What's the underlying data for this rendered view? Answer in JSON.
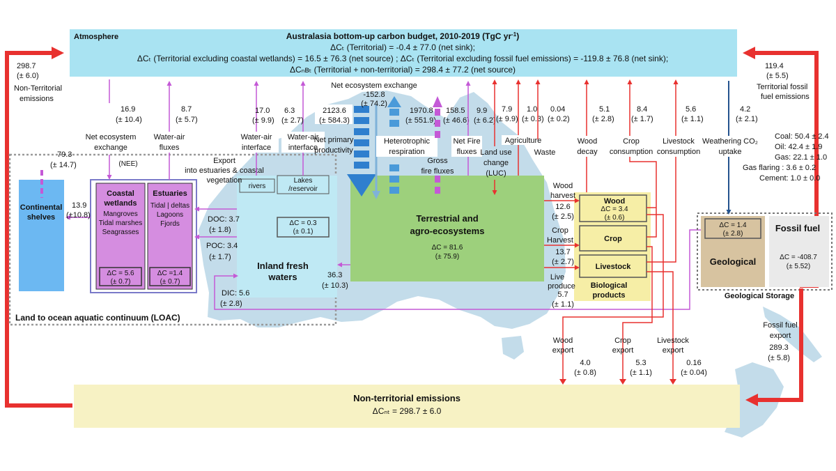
{
  "atmosphere": {
    "label": "Atmosphere",
    "title": "Australasia bottom-up carbon budget, 2010-2019  (TgC yr",
    "title_sup": "-1",
    "title_end": ")",
    "line1": "ΔCₜ (Territorial) = -0.4 ± 77.0 (net sink);",
    "line2": "ΔCₜ (Territorial excluding coastal wetlands) = 16.5 ± 76.3 (net source) ; ΔCₜ (Territorial excluding fossil fuel emissions) = -119.8 ± 76.8 (net sink);",
    "line3": "ΔCₙʙₜ (Territorial + non-territorial) = 298.4 ± 77.2 (net source)"
  },
  "non_territorial": {
    "left_value": "298.7",
    "left_unc": "(± 6.0)",
    "left_label1": "Non-Territorial",
    "left_label2": "emissions",
    "box_title": "Non-territorial emissions",
    "box_value": "ΔCₙₜ = 298.7 ± 6.0"
  },
  "fossil_right": {
    "value": "119.4",
    "unc": "(± 5.5)",
    "label1": "Territorial fossil",
    "label2": "fuel emissions",
    "coal": "Coal: 50.4 ± 2.4",
    "oil": "Oil:    42.4 ± 1.9",
    "gas": "Gas:   22.1 ± 1.0",
    "flaring": "Gas flaring : 3.6 ± 0.2",
    "cement": "Cement: 1.0 ± 0.0"
  },
  "fluxes": {
    "nee_val": "16.9",
    "nee_unc": "(± 10.4)",
    "nee_l1": "Net ecosystem",
    "nee_l2": "exchange",
    "nee_tag": "(NEE)",
    "wa_val": "8.7",
    "wa_unc": "(± 5.7)",
    "wa_l1": "Water-air",
    "wa_l2": "fluxes",
    "cont_val": "79.3",
    "cont_unc": "(± 14.7)",
    "rv_val": "17.0",
    "rv_unc": "(± 9.9)",
    "rv_l1": "Water-air",
    "rv_l2": "interface",
    "lk_val": "6.3",
    "lk_unc": "(± 2.7)",
    "lk_l1": "Water-air",
    "lk_l2": "interface",
    "npp_val": "2123.6",
    "npp_unc": "(± 584.3)",
    "npp_l1": "Net primary",
    "npp_l2": "productivity",
    "nete_label": "Net ecosystem exchange",
    "nete_val": "-152.8",
    "nete_unc": "(± 74.2)",
    "het_val": "1970.8",
    "het_unc": "(± 551.9)",
    "het_l1": "Heterotrophic",
    "het_l2": "respiration",
    "gf_val": "158.5",
    "gf_unc": "(± 46.6)",
    "gf_l1": "Gross",
    "gf_l2": "fire fluxes",
    "nf_val": "9.9",
    "nf_unc": "(± 6.2)",
    "nf_l1": "Net Fire",
    "nf_l2": "fluxes",
    "luc_val": "7.9",
    "luc_unc": "(± 9.9)",
    "luc_l1": "Land use",
    "luc_l2": "change",
    "luc_l3": "(LUC)",
    "ag_val": "1.0",
    "ag_unc": "(± 0.3)",
    "ag_l1": "Agriculture",
    "ws_val": "0.04",
    "ws_unc": "(± 0.2)",
    "ws_l1": "Waste",
    "wd_val": "5.1",
    "wd_unc": "(± 2.8)",
    "wd_l1": "Wood",
    "wd_l2": "decay",
    "cc_val": "8.4",
    "cc_unc": "(± 1.7)",
    "cc_l1": "Crop",
    "cc_l2": "consumption",
    "lc_val": "5.6",
    "lc_unc": "(± 1.1)",
    "lc_l1": "Livestock",
    "lc_l2": "consumption",
    "we_val": "4.2",
    "we_unc": "(± 2.1)",
    "we_l1": "Weathering CO₂",
    "we_l2": "uptake"
  },
  "loac": {
    "label": "Land to ocean aquatic continuum (LOAC)",
    "shelves_l1": "Continental",
    "shelves_l2": "shelves",
    "sh_flux_val": "13.9",
    "sh_flux_unc": "(±10.8)",
    "cw_title1": "Coastal",
    "cw_title2": "wetlands",
    "cw_i1": "Mangroves",
    "cw_i2": "Tidal marshes",
    "cw_i3": "Seagrasses",
    "cw_dc1": "ΔC = 5.6",
    "cw_dc2": "(± 0.7)",
    "es_title": "Estuaries",
    "es_i1": "Tidal | deltas",
    "es_i2": "Lagoons",
    "es_i3": "Fjords",
    "es_dc1": "ΔC =1.4",
    "es_dc2": "(± 0.7)",
    "export_l1": "Export",
    "export_l2": "into estuaries & coastal",
    "export_l3": "vegetation",
    "doc": "DOC: 3.7",
    "doc_unc": "(± 1.8)",
    "poc": "POC: 3.4",
    "poc_unc": "(± 1.7)",
    "dic": "DIC: 5.6",
    "dic_unc": "(± 2.8)",
    "rivers": "rivers",
    "lakes1": "Lakes",
    "lakes2": "/reservoir",
    "lk_dc1": "ΔC = 0.3",
    "lk_dc2": "(± 0.1)",
    "ifw1": "Inland fresh",
    "ifw2": "waters",
    "lat_val": "36.3",
    "lat_unc": "(± 10.3)"
  },
  "terrestrial": {
    "title1": "Terrestrial and",
    "title2": "agro-ecosystems",
    "dc1": "ΔC = 81.6",
    "dc2": "(± 75.9)"
  },
  "bio": {
    "wh_l1": "Wood",
    "wh_l2": "harvest",
    "wh_val": "12.6",
    "wh_unc": "(± 2.5)",
    "ch_l1": "Crop",
    "ch_l2": "Harvest",
    "ch_val": "13.7",
    "ch_unc": "(± 2.7)",
    "lp_l1": "Live",
    "lp_l2": "produce",
    "lp_val": "5.7",
    "lp_unc": "(± 1.1)",
    "wood": "Wood",
    "wood_dc1": "ΔC = 3.4",
    "wood_dc2": "(± 0.6)",
    "crop": "Crop",
    "livestock": "Livestock",
    "bp1": "Biological",
    "bp2": "products"
  },
  "exports": {
    "we_l1": "Wood",
    "we_l2": "export",
    "we_val": "4.0",
    "we_unc": "(± 0.8)",
    "ce_l1": "Crop",
    "ce_l2": "export",
    "ce_val": "5.3",
    "ce_unc": "(± 1.1)",
    "le_l1": "Livestock",
    "le_l2": "export",
    "le_val": "0.16",
    "le_unc": "(± 0.04)"
  },
  "storage": {
    "geo_dc1": "ΔC = 1.4",
    "geo_dc2": "(± 2.8)",
    "geo": "Geological",
    "ff": "Fossil fuel",
    "ff_dc1": "ΔC = -408.7",
    "ff_dc2": "(± 5.52)",
    "label": "Geological Storage",
    "exp_l1": "Fossil fuel",
    "exp_l2": "export",
    "exp_val": "289.3",
    "exp_unc": "(± 5.8)"
  },
  "colors": {
    "atmosphere": "#a9e3f2",
    "nonterritorial": "#f7f2c4",
    "terrestrial": "#9dd07c",
    "inland": "#bfe9f4",
    "wetlands": "#d58de0",
    "shelves": "#6cb8f2",
    "bio": "#f6eea6",
    "geological": "#d7c3a0",
    "fossil": "#eaeaea",
    "land": "#c3dcea",
    "red": "#e8312f",
    "purple": "#c459d6",
    "blue": "#2f7fce",
    "navy": "#24538e"
  }
}
